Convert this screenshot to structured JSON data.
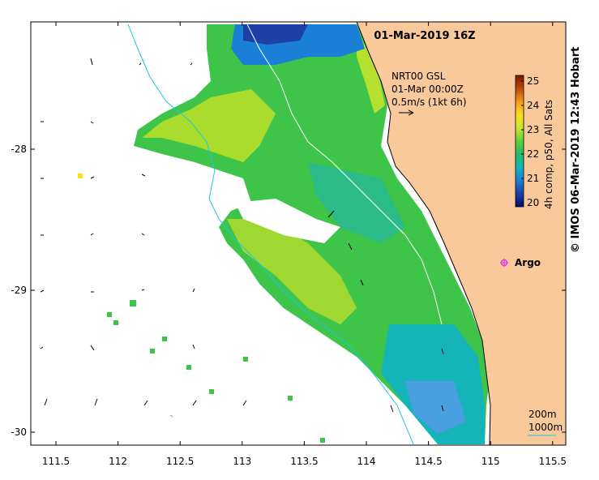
{
  "title": "01-Mar-2019 16Z",
  "product_info": {
    "line1": "NRT00 GSL",
    "line2": "01-Mar 00:00Z",
    "line3": "0.5m/s (1kt 6h)"
  },
  "colorbar": {
    "label": "4h comp, p50, All Sats",
    "ticks": [
      "25",
      "24",
      "23",
      "22",
      "21",
      "20"
    ],
    "min": 20,
    "max": 25,
    "colors": [
      "#7a1a00",
      "#c0480a",
      "#f29a1e",
      "#f7df1e",
      "#c9e634",
      "#5fcf3a",
      "#22bb6a",
      "#14b4b8",
      "#1a7fd6",
      "#1c3fa8",
      "#0a0a6e"
    ]
  },
  "axes": {
    "x_ticks": [
      "111.5",
      "112",
      "112.5",
      "113",
      "113.5",
      "114",
      "114.5",
      "115",
      "115.5"
    ],
    "y_ticks": [
      "-28",
      "-29",
      "-30"
    ]
  },
  "argo": {
    "label": "Argo",
    "color": "#e040e0"
  },
  "legend": {
    "contour1": "200m",
    "contour2": "1000m"
  },
  "credit": "© IMOS 06-Mar-2019 12:43 Hobart",
  "land_color": "#f9c89b",
  "ocean_color": "#ffffff"
}
